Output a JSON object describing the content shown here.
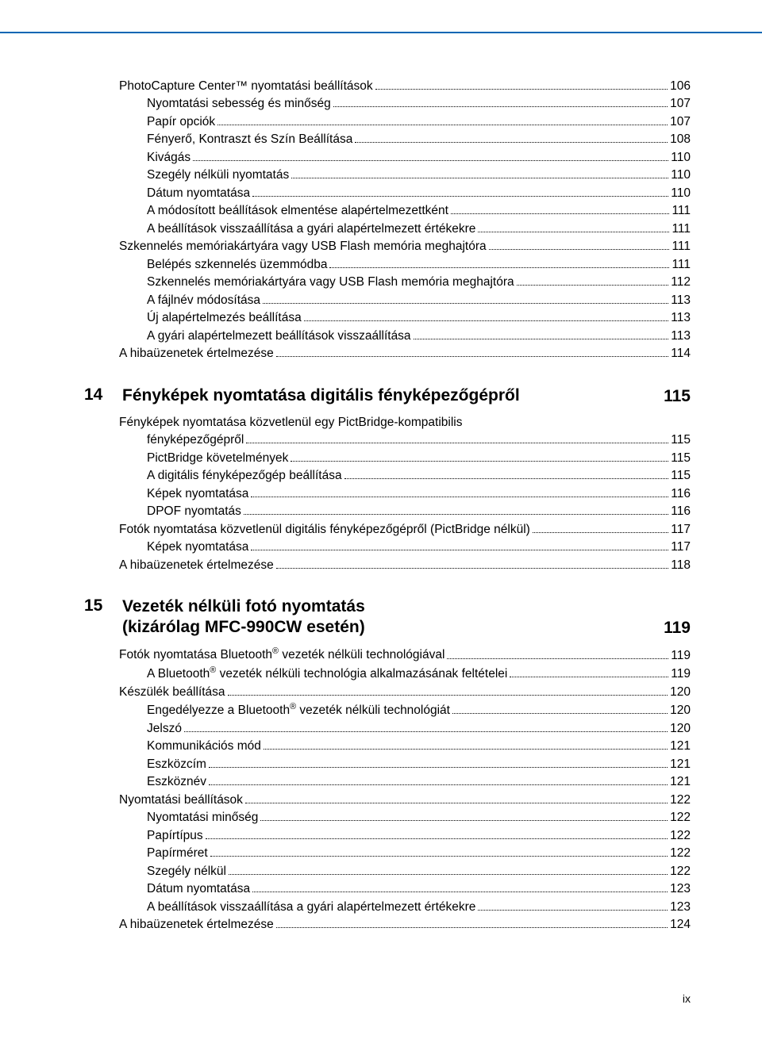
{
  "introEntries": [
    {
      "t": "PhotoCapture Center™ nyomtatási beállítások",
      "p": "106",
      "lvl": 0
    },
    {
      "t": "Nyomtatási sebesség és minőség",
      "p": "107",
      "lvl": 1
    },
    {
      "t": "Papír opciók",
      "p": "107",
      "lvl": 1
    },
    {
      "t": "Fényerő, Kontraszt és Szín Beállítása",
      "p": "108",
      "lvl": 1
    },
    {
      "t": "Kivágás",
      "p": "110",
      "lvl": 1
    },
    {
      "t": "Szegély nélküli nyomtatás",
      "p": "110",
      "lvl": 1
    },
    {
      "t": "Dátum nyomtatása",
      "p": "110",
      "lvl": 1
    },
    {
      "t": "A módosított beállítások elmentése alapértelmezettként",
      "p": "111",
      "lvl": 1
    },
    {
      "t": "A beállítások visszaállítása a gyári alapértelmezett értékekre",
      "p": "111",
      "lvl": 1
    },
    {
      "t": "Szkennelés memóriakártyára vagy USB Flash memória meghajtóra",
      "p": "111",
      "lvl": 0
    },
    {
      "t": "Belépés szkennelés üzemmódba",
      "p": "111",
      "lvl": 1
    },
    {
      "t": "Szkennelés memóriakártyára vagy USB Flash memória meghajtóra",
      "p": "112",
      "lvl": 1
    },
    {
      "t": "A fájlnév módosítása",
      "p": "113",
      "lvl": 1
    },
    {
      "t": "Új alapértelmezés beállítása",
      "p": "113",
      "lvl": 1
    },
    {
      "t": "A gyári alapértelmezett beállítások visszaállítása",
      "p": "113",
      "lvl": 1
    },
    {
      "t": "A hibaüzenetek értelmezése",
      "p": "114",
      "lvl": 0
    }
  ],
  "sections": [
    {
      "num": "14",
      "title": "Fényképek nyomtatása digitális fényképezőgépről",
      "page": "115",
      "entries": [
        {
          "t": "Fényképek nyomtatása közvetlenül egy PictBridge-kompatibilis fényképezőgépről",
          "p": "115",
          "lvl": 0,
          "wrap": true
        },
        {
          "t": "PictBridge követelmények",
          "p": "115",
          "lvl": 1
        },
        {
          "t": "A digitális fényképezőgép beállítása",
          "p": "115",
          "lvl": 1
        },
        {
          "t": "Képek nyomtatása",
          "p": "116",
          "lvl": 1
        },
        {
          "t": "DPOF nyomtatás",
          "p": "116",
          "lvl": 1
        },
        {
          "t": "Fotók nyomtatása közvetlenül digitális fényképezőgépről (PictBridge nélkül)",
          "p": "117",
          "lvl": 0
        },
        {
          "t": "Képek nyomtatása",
          "p": "117",
          "lvl": 1
        },
        {
          "t": "A hibaüzenetek értelmezése",
          "p": "118",
          "lvl": 0
        }
      ]
    },
    {
      "num": "15",
      "title": "Vezeték nélküli fotó nyomtatás<br>(kizárólag MFC-990CW esetén)",
      "page": "119",
      "entries": [
        {
          "t": "Fotók nyomtatása Bluetooth<sup>®</sup> vezeték nélküli technológiával",
          "p": "119",
          "lvl": 0
        },
        {
          "t": "A Bluetooth<sup>®</sup> vezeték nélküli technológia alkalmazásának feltételei",
          "p": "119",
          "lvl": 1
        },
        {
          "t": "Készülék beállítása",
          "p": "120",
          "lvl": 0
        },
        {
          "t": "Engedélyezze a Bluetooth<sup>®</sup> vezeték nélküli technológiát",
          "p": "120",
          "lvl": 1
        },
        {
          "t": "Jelszó",
          "p": "120",
          "lvl": 1
        },
        {
          "t": "Kommunikációs mód",
          "p": "121",
          "lvl": 1
        },
        {
          "t": "Eszközcím",
          "p": "121",
          "lvl": 1
        },
        {
          "t": "Eszköznév",
          "p": "121",
          "lvl": 1
        },
        {
          "t": "Nyomtatási beállítások",
          "p": "122",
          "lvl": 0
        },
        {
          "t": "Nyomtatási minőség",
          "p": "122",
          "lvl": 1
        },
        {
          "t": "Papírtípus",
          "p": "122",
          "lvl": 1
        },
        {
          "t": "Papírméret",
          "p": "122",
          "lvl": 1
        },
        {
          "t": "Szegély nélkül",
          "p": "122",
          "lvl": 1
        },
        {
          "t": "Dátum nyomtatása",
          "p": "123",
          "lvl": 1
        },
        {
          "t": "A beállítások visszaállítása a gyári alapértelmezett értékekre",
          "p": "123",
          "lvl": 1
        },
        {
          "t": "A hibaüzenetek értelmezése",
          "p": "124",
          "lvl": 0
        }
      ]
    }
  ],
  "footer": "ix"
}
